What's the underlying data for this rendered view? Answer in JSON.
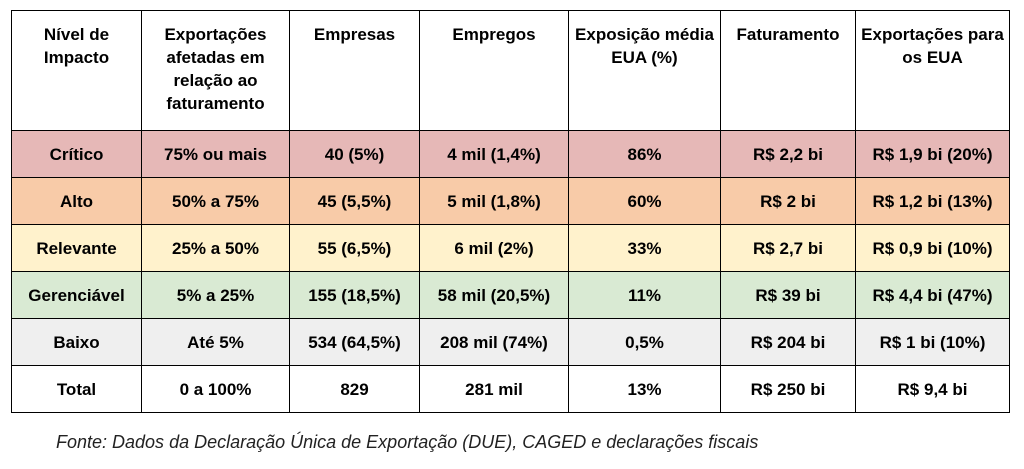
{
  "table": {
    "headers": [
      "Nível de Impacto",
      "Exportações afetadas em relação ao faturamento",
      "Empresas",
      "Empregos",
      "Exposição média EUA (%)",
      "Faturamento",
      "Exportações para os EUA"
    ],
    "rows": [
      {
        "color": "#e6b8b7",
        "cells": [
          "Crítico",
          "75% ou mais",
          "40 (5%)",
          "4 mil (1,4%)",
          "86%",
          "R$ 2,2 bi",
          "R$ 1,9 bi (20%)"
        ]
      },
      {
        "color": "#f8cba8",
        "cells": [
          "Alto",
          "50% a 75%",
          "45 (5,5%)",
          "5 mil (1,8%)",
          "60%",
          "R$ 2 bi",
          "R$ 1,2 bi (13%)"
        ]
      },
      {
        "color": "#fff2cc",
        "cells": [
          "Relevante",
          "25% a 50%",
          "55 (6,5%)",
          "6 mil (2%)",
          "33%",
          "R$ 2,7 bi",
          "R$ 0,9 bi (10%)"
        ]
      },
      {
        "color": "#d9ead3",
        "cells": [
          "Gerenciável",
          "5% a 25%",
          "155 (18,5%)",
          "58 mil (20,5%)",
          "11%",
          "R$ 39 bi",
          "R$ 4,4 bi (47%)"
        ]
      },
      {
        "color": "#efefef",
        "cells": [
          "Baixo",
          "Até 5%",
          "534 (64,5%)",
          "208 mil (74%)",
          "0,5%",
          "R$ 204 bi",
          "R$ 1 bi (10%)"
        ]
      },
      {
        "color": "#ffffff",
        "cells": [
          "Total",
          "0 a 100%",
          "829",
          "281 mil",
          "13%",
          "R$ 250 bi",
          "R$ 9,4 bi"
        ]
      }
    ]
  },
  "source": "Fonte: Dados da Declaração Única de Exportação (DUE), CAGED e declarações fiscais"
}
